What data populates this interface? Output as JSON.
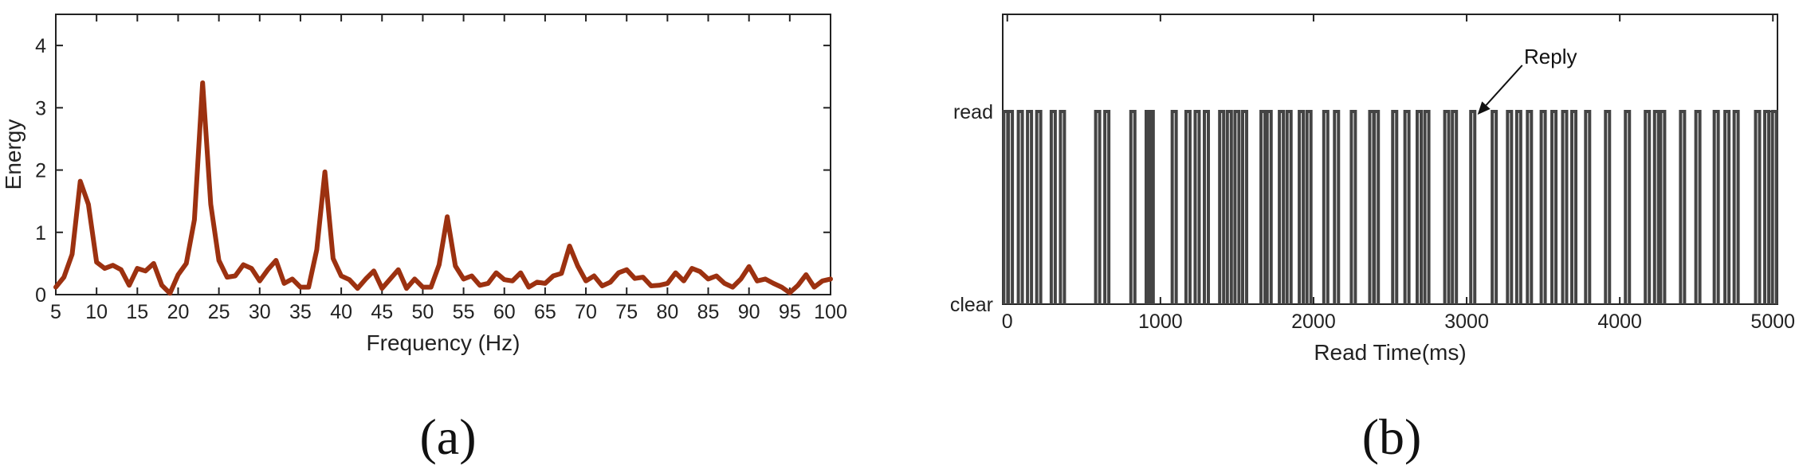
{
  "chart_data": [
    {
      "type": "line",
      "panel_label": "(a)",
      "xlabel": "Frequency (Hz)",
      "ylabel": "Energy",
      "xlim": [
        5,
        100
      ],
      "ylim": [
        0,
        4.5
      ],
      "xticks": [
        5,
        10,
        15,
        20,
        25,
        30,
        35,
        40,
        45,
        50,
        55,
        60,
        65,
        70,
        75,
        80,
        85,
        90,
        95,
        100
      ],
      "yticks": [
        0,
        1,
        2,
        3,
        4
      ],
      "color": "#9c3110",
      "series": [
        {
          "x": [
            5,
            6,
            7,
            8,
            9,
            10,
            11,
            12,
            13,
            14,
            15,
            16,
            17,
            18,
            19,
            20,
            21,
            22,
            23,
            24,
            25,
            26,
            27,
            28,
            29,
            30,
            31,
            32,
            33,
            34,
            35,
            36,
            37,
            38,
            39,
            40,
            41,
            42,
            43,
            44,
            45,
            46,
            47,
            48,
            49,
            50,
            51,
            52,
            53,
            54,
            55,
            56,
            57,
            58,
            59,
            60,
            61,
            62,
            63,
            64,
            65,
            66,
            67,
            68,
            69,
            70,
            71,
            72,
            73,
            74,
            75,
            76,
            77,
            78,
            79,
            80,
            81,
            82,
            83,
            84,
            85,
            86,
            87,
            88,
            89,
            90,
            91,
            92,
            93,
            94,
            95,
            96,
            97,
            98,
            99,
            100
          ],
          "y": [
            0.12,
            0.28,
            0.65,
            1.82,
            1.45,
            0.52,
            0.42,
            0.47,
            0.4,
            0.15,
            0.42,
            0.38,
            0.5,
            0.15,
            0.02,
            0.32,
            0.5,
            1.2,
            3.4,
            1.45,
            0.55,
            0.28,
            0.3,
            0.48,
            0.42,
            0.22,
            0.4,
            0.55,
            0.18,
            0.25,
            0.12,
            0.12,
            0.72,
            1.97,
            0.58,
            0.3,
            0.24,
            0.1,
            0.25,
            0.38,
            0.1,
            0.25,
            0.4,
            0.1,
            0.25,
            0.12,
            0.12,
            0.48,
            1.25,
            0.46,
            0.25,
            0.3,
            0.15,
            0.18,
            0.35,
            0.24,
            0.22,
            0.35,
            0.12,
            0.2,
            0.18,
            0.3,
            0.34,
            0.78,
            0.46,
            0.22,
            0.3,
            0.14,
            0.2,
            0.35,
            0.4,
            0.26,
            0.28,
            0.14,
            0.15,
            0.18,
            0.35,
            0.22,
            0.42,
            0.37,
            0.25,
            0.3,
            0.18,
            0.12,
            0.25,
            0.45,
            0.22,
            0.25,
            0.18,
            0.12,
            0.03,
            0.15,
            0.32,
            0.12,
            0.22,
            0.25
          ]
        }
      ]
    },
    {
      "type": "line",
      "panel_label": "(b)",
      "xlabel": "Read Time(ms)",
      "ylabel": "",
      "xlim": [
        -30,
        5030
      ],
      "xticks": [
        0,
        1000,
        2000,
        3000,
        4000,
        5000
      ],
      "yticks": [
        "clear",
        "read"
      ],
      "color": "#444444",
      "annotation": {
        "text": "Reply",
        "x": 3040
      },
      "series": [
        {
          "name": "",
          "events_x": [
            -10,
            20,
            85,
            145,
            205,
            300,
            360,
            590,
            650,
            820,
            920,
            940,
            1090,
            1180,
            1240,
            1300,
            1400,
            1450,
            1500,
            1550,
            1670,
            1710,
            1790,
            1840,
            1920,
            1970,
            2080,
            2150,
            2260,
            2380,
            2410,
            2530,
            2610,
            2690,
            2740,
            2870,
            2920,
            3040,
            3180,
            3280,
            3340,
            3410,
            3500,
            3570,
            3640,
            3700,
            3790,
            3920,
            4050,
            4180,
            4240,
            4280,
            4410,
            4510,
            4630,
            4700,
            4760,
            4900,
            4960,
            5010
          ]
        }
      ]
    }
  ]
}
